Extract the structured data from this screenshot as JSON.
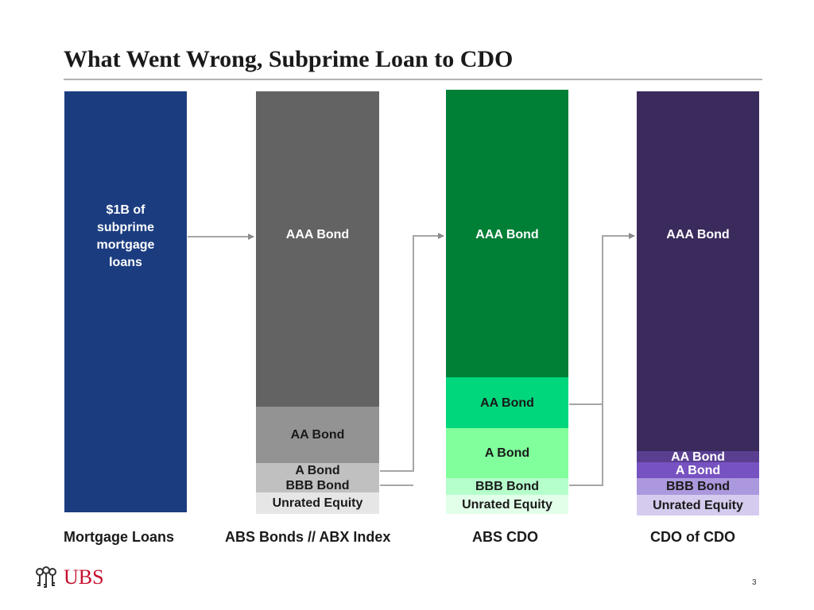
{
  "title": "What Went Wrong, Subprime Loan to CDO",
  "columns": [
    {
      "caption": "Mortgage Loans",
      "segments": [
        {
          "label": "$1B of subprime mortgage loans",
          "color": "#1b3d80"
        }
      ]
    },
    {
      "caption": "ABS Bonds // ABX Index",
      "segments": [
        {
          "label": "AAA Bond",
          "color": "#636363"
        },
        {
          "label": "AA Bond",
          "color": "#939393"
        },
        {
          "label": "A Bond\nBBB Bond",
          "color": "#c0c0c0"
        },
        {
          "label": "Unrated Equity",
          "color": "#e6e6e6"
        }
      ]
    },
    {
      "caption": "ABS CDO",
      "segments": [
        {
          "label": "AAA Bond",
          "color": "#007f36"
        },
        {
          "label": "AA Bond",
          "color": "#00d67c"
        },
        {
          "label": "A Bond",
          "color": "#80ff9c"
        },
        {
          "label": "BBB Bond",
          "color": "#b5ffcb"
        },
        {
          "label": "Unrated Equity",
          "color": "#e2ffe9"
        }
      ]
    },
    {
      "caption": "CDO of CDO",
      "segments": [
        {
          "label": "AAA Bond",
          "color": "#3b2a5c"
        },
        {
          "label": "AA Bond",
          "color": "#5a3f91"
        },
        {
          "label": "A Bond",
          "color": "#7752c1"
        },
        {
          "label": "BBB Bond",
          "color": "#ac98dd"
        },
        {
          "label": "Unrated Equity",
          "color": "#d5cbee"
        }
      ]
    }
  ],
  "logo": {
    "text": "UBS",
    "icon": "ubs-keys-icon"
  },
  "page_number": "3"
}
